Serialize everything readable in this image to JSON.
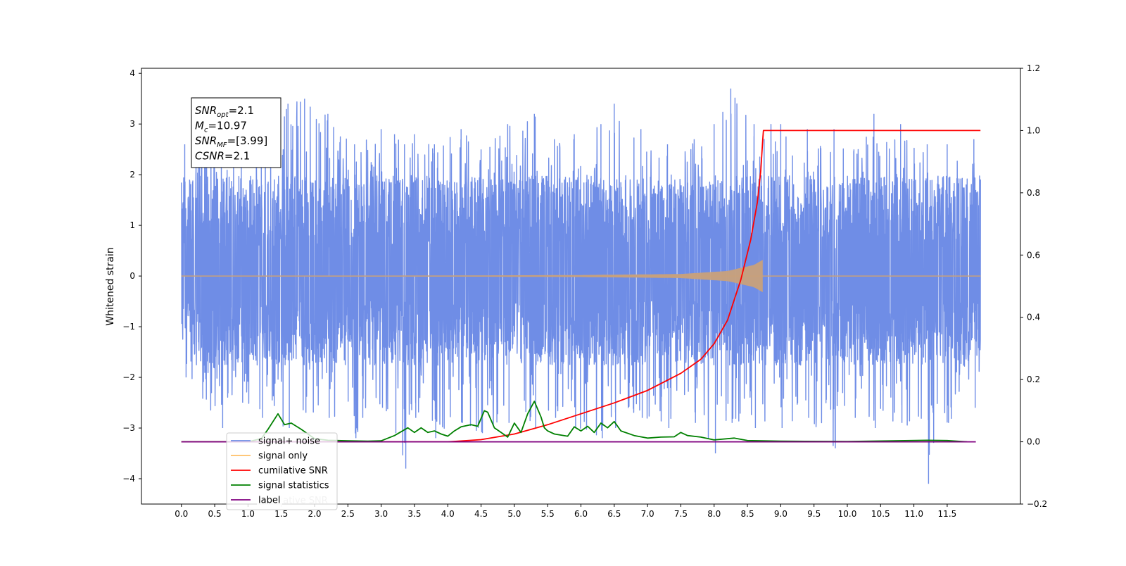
{
  "chart_data": {
    "type": "line",
    "ylabel_left": "Whitened strain",
    "xlim": [
      -0.6,
      12.6
    ],
    "ylim_left": [
      -4.5,
      4.1
    ],
    "ylim_right": [
      -0.2,
      1.2
    ],
    "xticks": [
      0.0,
      0.5,
      1.0,
      1.5,
      2.0,
      2.5,
      3.0,
      3.5,
      4.0,
      4.5,
      5.0,
      5.5,
      6.0,
      6.5,
      7.0,
      7.5,
      8.0,
      8.5,
      9.0,
      9.5,
      10.0,
      10.5,
      11.0,
      11.5
    ],
    "xtick_labels": [
      "0.0",
      "0.5",
      "1.0",
      "1.5",
      "2.0",
      "2.5",
      "3.0",
      "3.5",
      "4.0",
      "4.5",
      "5.0",
      "5.5",
      "6.0",
      "6.5",
      "7.0",
      "7.5",
      "8.0",
      "8.5",
      "9.0",
      "9.5",
      "10.0",
      "10.5",
      "11.0",
      "11.5"
    ],
    "yticks_left": [
      -4,
      -3,
      -2,
      -1,
      0,
      1,
      2,
      3,
      4
    ],
    "ytick_labels_left": [
      "−4",
      "−3",
      "−2",
      "−1",
      "0",
      "1",
      "2",
      "3",
      "4"
    ],
    "yticks_right": [
      -0.2,
      0.0,
      0.2,
      0.4,
      0.6,
      0.8,
      1.0,
      1.2
    ],
    "ytick_labels_right": [
      "−0.2",
      "0.0",
      "0.2",
      "0.4",
      "0.6",
      "0.8",
      "1.0",
      "1.2"
    ],
    "grid": false,
    "legend_placement": "lower-left",
    "annotation_box": [
      {
        "var": "SNR",
        "sub": "opt",
        "value": "=2.1"
      },
      {
        "var": "M",
        "sub": "c",
        "value": "=10.97"
      },
      {
        "var": "SNR",
        "sub": "MF",
        "value": "=[3.99]"
      },
      {
        "var": "CSNR",
        "sub": "",
        "value": "=2.1"
      }
    ],
    "series": [
      {
        "name": "signal+ noise",
        "axis": "left",
        "color": "#6f8de6",
        "kind": "noise",
        "x_range": [
          0.0,
          12.0
        ],
        "typical_band": [
          -1.6,
          1.8
        ],
        "envelope_peaks": {
          "x": [
            0.05,
            0.3,
            0.6,
            0.9,
            1.2,
            1.6,
            1.85,
            2.2,
            2.6,
            3.0,
            3.2,
            3.35,
            3.5,
            3.8,
            4.2,
            4.5,
            4.9,
            5.3,
            5.6,
            5.9,
            6.3,
            6.5,
            6.9,
            7.3,
            7.7,
            8.0,
            8.25,
            8.6,
            9.0,
            9.4,
            9.8,
            10.1,
            10.4,
            10.8,
            11.2,
            11.5,
            11.9
          ],
          "y_max": [
            2.6,
            3.0,
            2.4,
            2.3,
            3.2,
            3.4,
            3.5,
            3.2,
            2.6,
            2.9,
            2.8,
            2.6,
            2.8,
            2.6,
            2.9,
            2.5,
            3.0,
            3.2,
            2.7,
            2.8,
            3.0,
            3.4,
            2.9,
            2.6,
            2.7,
            3.0,
            3.7,
            3.0,
            3.0,
            2.9,
            2.9,
            2.5,
            3.2,
            3.0,
            2.6,
            2.6,
            2.7
          ],
          "y_min": [
            -2.0,
            -2.4,
            -3.0,
            -2.5,
            -2.8,
            -3.0,
            -2.7,
            -2.8,
            -3.2,
            -2.6,
            -3.1,
            -3.8,
            -2.8,
            -3.2,
            -2.9,
            -3.1,
            -2.9,
            -3.0,
            -2.8,
            -3.0,
            -3.2,
            -3.0,
            -2.8,
            -3.0,
            -2.9,
            -3.5,
            -2.9,
            -3.0,
            -3.0,
            -2.8,
            -3.4,
            -2.8,
            -3.0,
            -2.9,
            -4.1,
            -2.9,
            -2.6
          ]
        }
      },
      {
        "name": "signal only",
        "axis": "left",
        "color": "#ffbf66",
        "kind": "chirp",
        "x_range": [
          0.0,
          8.73
        ],
        "amplitude_points": {
          "x": [
            0.0,
            4.0,
            6.0,
            7.5,
            8.2,
            8.6,
            8.73
          ],
          "y": [
            0.005,
            0.01,
            0.02,
            0.04,
            0.1,
            0.22,
            0.32
          ]
        },
        "after_merger": 0.0
      },
      {
        "name": "cumilative SNR",
        "axis": "right",
        "color": "#ff0000",
        "x": [
          0.0,
          3.0,
          4.0,
          4.5,
          5.0,
          5.5,
          6.0,
          6.5,
          7.0,
          7.5,
          7.8,
          8.0,
          8.2,
          8.4,
          8.55,
          8.65,
          8.7,
          8.73,
          8.74,
          12.0
        ],
        "y": [
          0.0,
          0.0,
          0.0,
          0.007,
          0.025,
          0.055,
          0.09,
          0.125,
          0.165,
          0.22,
          0.265,
          0.315,
          0.39,
          0.52,
          0.65,
          0.77,
          0.87,
          0.97,
          1.0,
          1.0
        ]
      },
      {
        "name": "signal statistics",
        "axis": "right",
        "color": "#008000",
        "x": [
          0.0,
          1.0,
          1.2,
          1.3,
          1.45,
          1.55,
          1.65,
          1.8,
          2.0,
          2.2,
          2.5,
          2.8,
          3.0,
          3.2,
          3.4,
          3.5,
          3.6,
          3.7,
          3.8,
          3.9,
          4.0,
          4.1,
          4.2,
          4.35,
          4.45,
          4.55,
          4.6,
          4.7,
          4.8,
          4.9,
          5.0,
          5.1,
          5.2,
          5.3,
          5.4,
          5.45,
          5.5,
          5.6,
          5.8,
          5.9,
          6.0,
          6.1,
          6.2,
          6.3,
          6.4,
          6.5,
          6.6,
          6.8,
          7.0,
          7.2,
          7.4,
          7.5,
          7.6,
          7.8,
          8.0,
          8.3,
          8.5,
          9.0,
          10.0,
          11.2,
          11.5,
          11.8
        ],
        "y": [
          0.0,
          0.0,
          0.01,
          0.04,
          0.09,
          0.055,
          0.06,
          0.04,
          0.01,
          0.005,
          0.003,
          0.002,
          0.003,
          0.02,
          0.045,
          0.03,
          0.045,
          0.03,
          0.035,
          0.025,
          0.018,
          0.035,
          0.048,
          0.055,
          0.05,
          0.1,
          0.095,
          0.045,
          0.03,
          0.015,
          0.06,
          0.03,
          0.09,
          0.13,
          0.08,
          0.045,
          0.035,
          0.025,
          0.018,
          0.048,
          0.035,
          0.05,
          0.03,
          0.06,
          0.045,
          0.065,
          0.035,
          0.02,
          0.012,
          0.015,
          0.016,
          0.03,
          0.02,
          0.015,
          0.006,
          0.012,
          0.004,
          0.002,
          0.001,
          0.005,
          0.004,
          0.0
        ]
      },
      {
        "name": "label",
        "axis": "right",
        "color": "#800080",
        "x": [
          0.0,
          11.93
        ],
        "y": [
          0.0,
          0.0
        ]
      }
    ],
    "legend_overflow_text": "cumilative SNR"
  },
  "colors": {
    "signal_noise": "#6f8de6",
    "signal_only": "#ffbf66",
    "chirp_fill": "#c8a17b",
    "cumulative": "#ff0000",
    "statistics": "#008000",
    "label": "#800080"
  }
}
